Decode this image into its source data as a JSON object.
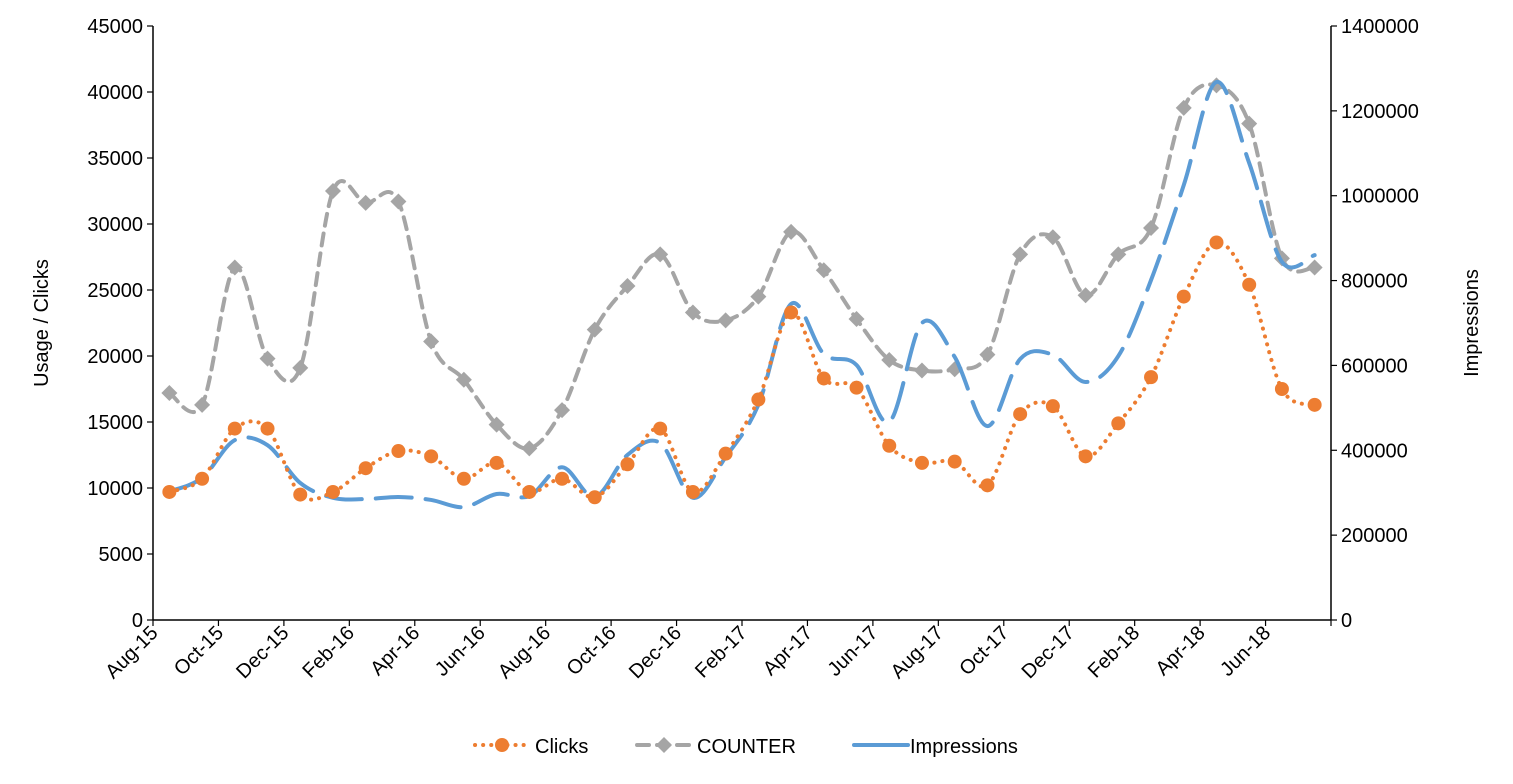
{
  "chart_data": {
    "type": "line",
    "title": "",
    "ylabel": "Usage / Clicks",
    "y2label": "Impressions",
    "ylim": [
      0,
      45000
    ],
    "y2lim": [
      0,
      1400000
    ],
    "yticks": [
      0,
      5000,
      10000,
      15000,
      20000,
      25000,
      30000,
      35000,
      40000,
      45000
    ],
    "y2ticks": [
      0,
      200000,
      400000,
      600000,
      800000,
      1000000,
      1200000,
      1400000
    ],
    "xtick_labels": [
      "Aug-15",
      "Oct-15",
      "Dec-15",
      "Feb-16",
      "Apr-16",
      "Jun-16",
      "Aug-16",
      "Oct-16",
      "Dec-16",
      "Feb-17",
      "Apr-17",
      "Jun-17",
      "Aug-17",
      "Oct-17",
      "Dec-17",
      "Feb-18",
      "Apr-18",
      "Jun-18"
    ],
    "x": [
      "Aug-15",
      "Sep-15",
      "Oct-15",
      "Nov-15",
      "Dec-15",
      "Jan-16",
      "Feb-16",
      "Mar-16",
      "Apr-16",
      "May-16",
      "Jun-16",
      "Jul-16",
      "Aug-16",
      "Sep-16",
      "Oct-16",
      "Nov-16",
      "Dec-16",
      "Jan-17",
      "Feb-17",
      "Mar-17",
      "Apr-17",
      "May-17",
      "Jun-17",
      "Jul-17",
      "Aug-17",
      "Sep-17",
      "Oct-17",
      "Nov-17",
      "Dec-17",
      "Jan-18",
      "Feb-18",
      "Mar-18",
      "Apr-18",
      "May-18",
      "Jun-18",
      "Jul-18"
    ],
    "legend": "bottom",
    "grid": false,
    "series": [
      {
        "name": "Clicks",
        "axis": "left",
        "color": "#ED7D31",
        "style": "dotted",
        "marker": "circle",
        "values": [
          9700,
          10700,
          14500,
          14500,
          9500,
          9700,
          11500,
          12800,
          12400,
          10700,
          11900,
          9700,
          10700,
          9300,
          11800,
          14500,
          9700,
          12600,
          16700,
          23300,
          18300,
          17600,
          13200,
          11900,
          12000,
          10200,
          15600,
          16200,
          12400,
          14900,
          18400,
          24500,
          28600,
          25400,
          17500,
          16300
        ]
      },
      {
        "name": "COUNTER",
        "axis": "left",
        "color": "#A5A5A5",
        "style": "dashed",
        "marker": "diamond",
        "values": [
          17200,
          16300,
          26700,
          19800,
          19100,
          32500,
          31600,
          31700,
          21100,
          18200,
          14800,
          13000,
          15900,
          22000,
          25300,
          27700,
          23300,
          22700,
          24500,
          29400,
          26500,
          22800,
          19700,
          18900,
          19000,
          20100,
          27700,
          29000,
          24600,
          27700,
          29700,
          38800,
          40500,
          37600,
          27400,
          26700
        ]
      },
      {
        "name": "Impressions",
        "axis": "right",
        "color": "#5B9BD5",
        "style": "long-dash",
        "marker": "none",
        "values": [
          303000,
          335000,
          424000,
          412000,
          323000,
          288000,
          285000,
          290000,
          283000,
          266000,
          297000,
          292000,
          360000,
          290000,
          389000,
          417000,
          288000,
          384000,
          507000,
          745000,
          627000,
          601000,
          467000,
          700000,
          620000,
          457000,
          615000,
          625000,
          561000,
          622000,
          801000,
          1025000,
          1268000,
          1077000,
          844000,
          860000
        ]
      }
    ]
  }
}
